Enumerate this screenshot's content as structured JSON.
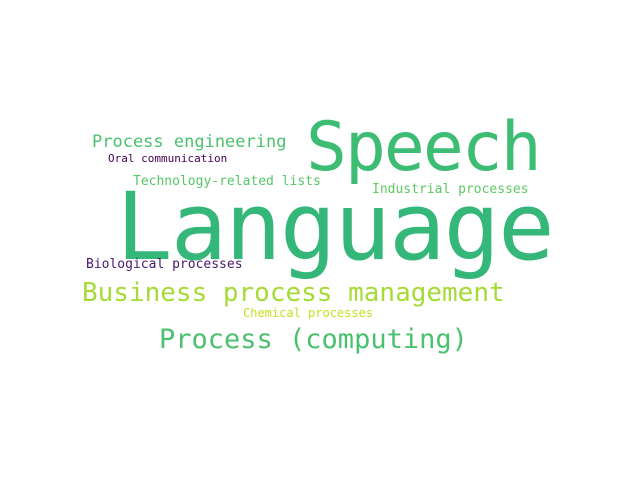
{
  "words": [
    {
      "text": "Language",
      "color": "#35b779"
    },
    {
      "text": "Speech",
      "color": "#3dbc74"
    },
    {
      "text": "Process engineering",
      "color": "#4ac16d"
    },
    {
      "text": "Oral communication",
      "color": "#440154"
    },
    {
      "text": "Technology-related lists",
      "color": "#56c667"
    },
    {
      "text": "Industrial processes",
      "color": "#5ec962"
    },
    {
      "text": "Biological processes",
      "color": "#481a6c"
    },
    {
      "text": "Business process management",
      "color": "#a5db36"
    },
    {
      "text": "Chemical processes",
      "color": "#c8e020"
    },
    {
      "text": "Process (computing)",
      "color": "#4ac16d"
    }
  ]
}
